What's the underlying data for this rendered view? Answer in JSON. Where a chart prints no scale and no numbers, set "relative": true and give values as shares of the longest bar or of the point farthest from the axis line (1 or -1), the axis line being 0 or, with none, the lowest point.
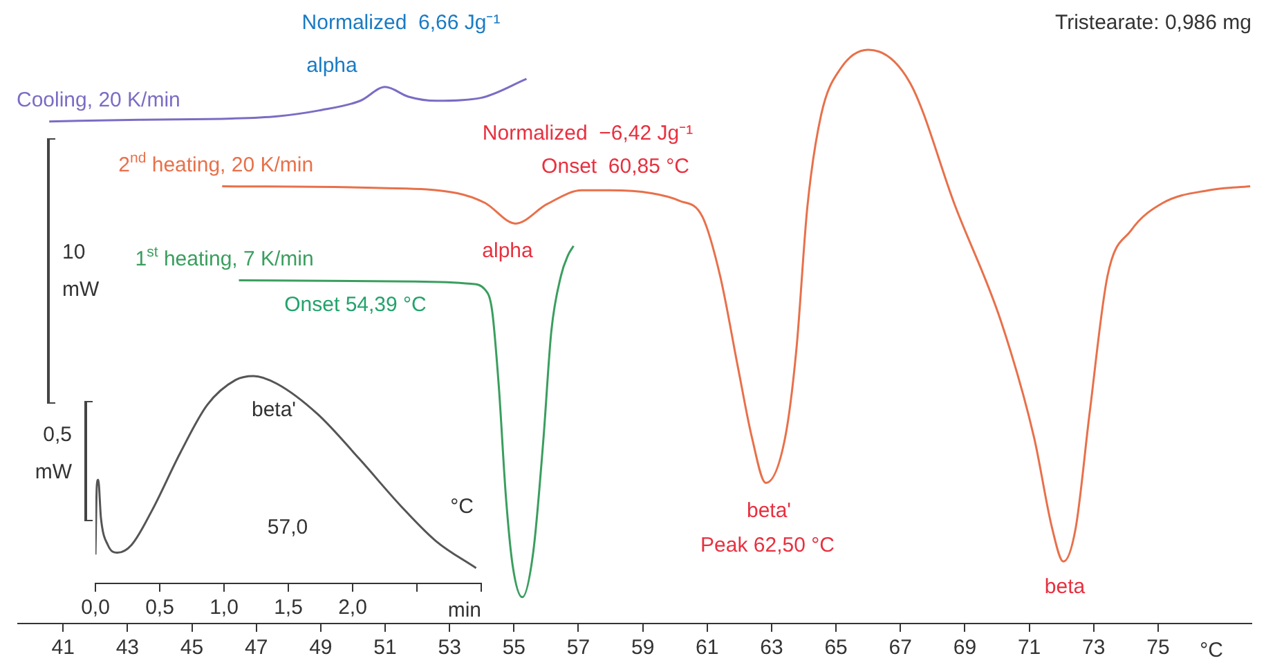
{
  "chart_data": [
    {
      "type": "line",
      "relative": true,
      "marker": "none",
      "legend": false,
      "xlabel": "°C",
      "xlim": [
        39.6,
        77.9
      ],
      "xticks": [
        41,
        43,
        45,
        47,
        49,
        51,
        53,
        55,
        57,
        59,
        61,
        63,
        65,
        67,
        69,
        71,
        73,
        75
      ],
      "series": [
        {
          "name": "Cooling, 20 K/min",
          "color": "#7b6cc4",
          "x": [
            40.57,
            43.36,
            46.24,
            47.65,
            48.94,
            50.23,
            51.0,
            51.73,
            52.59,
            53.97,
            55.39
          ],
          "values": [
            0.875,
            0.878,
            0.88,
            0.884,
            0.894,
            0.911,
            0.935,
            0.918,
            0.911,
            0.916,
            0.949
          ]
        },
        {
          "name": "2$^{nd}$ heating, 20 K/min",
          "color": "#e8704a",
          "x": [
            45.94,
            50.88,
            53.24,
            54.1,
            55.05,
            56.03,
            57.11,
            57.97,
            59.26,
            60.12,
            60.85,
            61.4,
            61.96,
            62.39,
            62.82,
            63.42,
            63.77,
            64.11,
            64.54,
            65.14,
            66.0,
            67.29,
            68.71,
            70.12,
            71.15,
            71.71,
            72.06,
            72.44,
            72.87,
            73.43,
            74.16,
            75.15,
            76.57,
            77.86
          ],
          "values": [
            0.762,
            0.759,
            0.75,
            0.733,
            0.697,
            0.731,
            0.755,
            0.755,
            0.75,
            0.737,
            0.709,
            0.606,
            0.445,
            0.324,
            0.245,
            0.324,
            0.478,
            0.726,
            0.887,
            0.967,
            1,
            0.943,
            0.726,
            0.527,
            0.324,
            0.166,
            0.108,
            0.166,
            0.365,
            0.606,
            0.685,
            0.733,
            0.755,
            0.762
          ]
        },
        {
          "name": "1$^{st}$ heating, 7 K/min",
          "color": "#3a9e5e",
          "x": [
            46.46,
            51.95,
            53.67,
            54.1,
            54.32,
            54.53,
            54.75,
            54.96,
            55.26,
            55.6,
            55.91,
            56.16,
            56.46,
            56.68,
            56.85
          ],
          "values": [
            0.598,
            0.596,
            0.592,
            0.582,
            0.546,
            0.413,
            0.221,
            0.101,
            0.046,
            0.125,
            0.318,
            0.509,
            0.606,
            0.642,
            0.658
          ]
        }
      ],
      "annotations": [
        "Tristearate: 0,986 mg",
        "10 mW",
        "Normalized  6,66 Jg⁻¹",
        "alpha",
        "Normalized  −6,42 Jg⁻¹",
        "Onset  60,85 °C",
        "alpha",
        "Onset 54,39 °C",
        "beta'",
        "Peak 62,50 °C",
        "beta"
      ]
    },
    {
      "type": "line",
      "relative": true,
      "marker": "none",
      "legend": false,
      "xlabel": "min",
      "xlim": [
        0,
        3
      ],
      "xticks": [
        {
          "value": 0,
          "label": "0,0"
        },
        {
          "value": 0.5,
          "label": "0,5"
        },
        {
          "value": 1,
          "label": "1,0"
        },
        {
          "value": 1.5,
          "label": "1,5"
        },
        {
          "value": 2,
          "label": "2,0"
        },
        {
          "value": 2.5,
          "label": null
        },
        {
          "value": 3,
          "label": null
        }
      ],
      "x": [
        0,
        0.011,
        0.022,
        0.043,
        0.097,
        0.17,
        0.28,
        0.44,
        0.66,
        0.87,
        1.09,
        1.23,
        1.41,
        1.73,
        2.05,
        2.38,
        2.65,
        2.96
      ],
      "series": [
        {
          "color": "#555555",
          "values": [
            0.139,
            0.472,
            0.5,
            0.315,
            0.185,
            0.148,
            0.185,
            0.352,
            0.63,
            0.861,
            0.981,
            1,
            0.963,
            0.815,
            0.602,
            0.37,
            0.203,
            0.074
          ]
        }
      ],
      "annotations": [
        "beta'",
        "0,5 mW",
        "57,0",
        "°C"
      ]
    }
  ]
}
